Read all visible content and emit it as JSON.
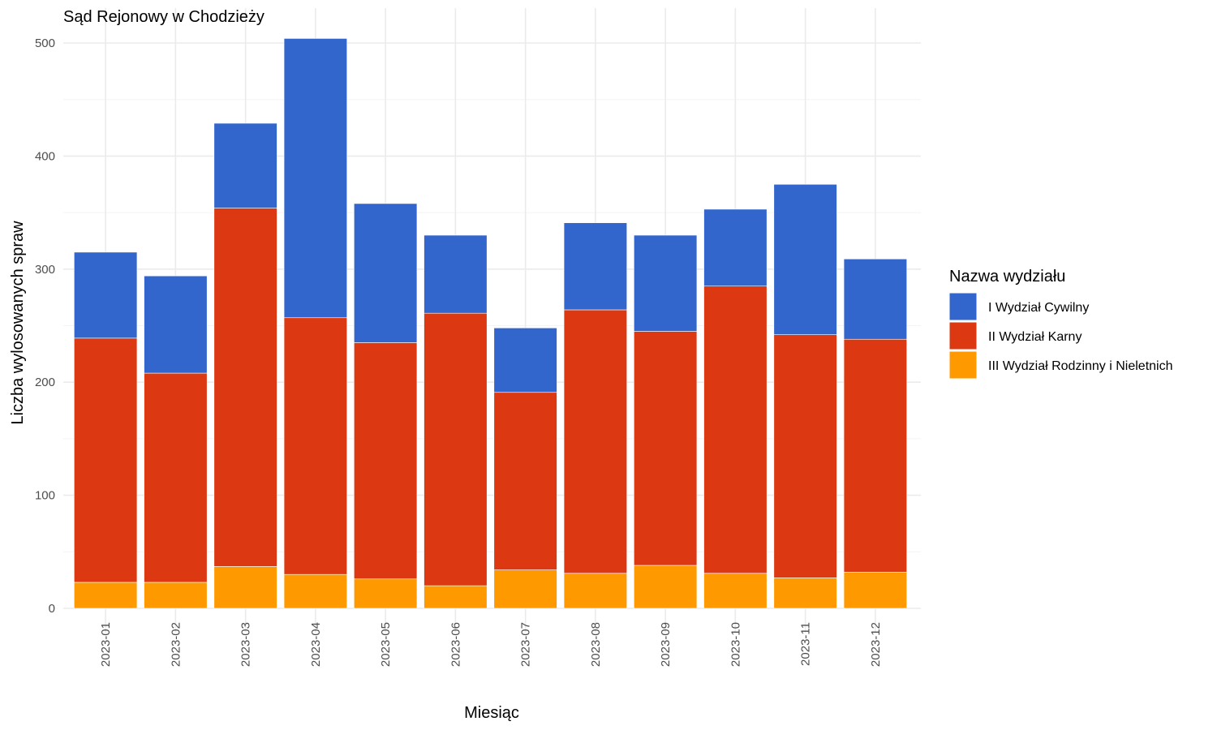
{
  "chart_data": {
    "type": "bar",
    "stacked": true,
    "title": "Sąd Rejonowy w Chodzieży",
    "xlabel": "Miesiąc",
    "ylabel": "Liczba wylosowanych spraw",
    "ylim": [
      0,
      525
    ],
    "yticks": [
      0,
      100,
      200,
      300,
      400,
      500
    ],
    "grid": true,
    "legend_title": "Nazwa wydziału",
    "legend_position": "right",
    "categories": [
      "2023-01",
      "2023-02",
      "2023-03",
      "2023-04",
      "2023-05",
      "2023-06",
      "2023-07",
      "2023-08",
      "2023-09",
      "2023-10",
      "2023-11",
      "2023-12"
    ],
    "series": [
      {
        "name": "III Wydział Rodzinny i Nieletnich",
        "color": "#FF9900",
        "values": [
          23,
          23,
          37,
          30,
          26,
          20,
          34,
          31,
          38,
          31,
          27,
          32
        ]
      },
      {
        "name": "II Wydział Karny",
        "color": "#DC3912",
        "values": [
          216,
          185,
          317,
          227,
          209,
          241,
          157,
          233,
          207,
          254,
          215,
          206
        ]
      },
      {
        "name": "I Wydział Cywilny",
        "color": "#3366CC",
        "values": [
          76,
          86,
          75,
          247,
          123,
          69,
          57,
          77,
          85,
          68,
          133,
          71
        ]
      }
    ],
    "legend_order": [
      "I Wydział Cywilny",
      "II Wydział Karny",
      "III Wydział Rodzinny i Nieletnich"
    ]
  }
}
